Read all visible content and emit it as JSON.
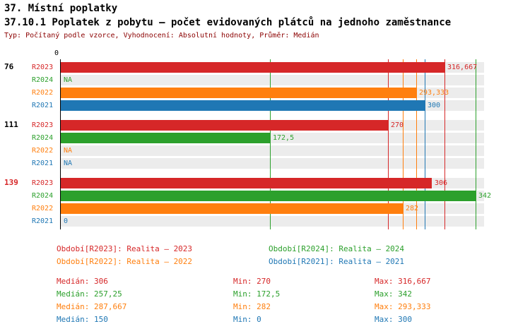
{
  "header": {
    "title1": "37. Místní poplatky",
    "title2": "37.10.1 Poplatek z pobytu – počet evidovaných plátců na jednoho zaměstnance",
    "subtitle": "Typ: Počítaný podle vzorce, Vyhodnocení: Absolutní hodnoty, Průměr: Medián"
  },
  "axis": {
    "zero_label": "0",
    "max": 349
  },
  "colors": {
    "series": {
      "R2023": "#d62728",
      "R2024": "#2ca02c",
      "R2022": "#ff7f0e",
      "R2021": "#1f77b4"
    },
    "subtitle": "#8b0000",
    "group_label_highlight": "#d62728",
    "track": "#ececec",
    "axis": "#000000"
  },
  "chart_data": {
    "type": "bar",
    "orientation": "horizontal",
    "title": "37.10.1 Poplatek z pobytu – počet evidovaných plátců na jednoho zaměstnance",
    "xlim": [
      0,
      349
    ],
    "series_order": [
      "R2023",
      "R2024",
      "R2022",
      "R2021"
    ],
    "groups": [
      {
        "label": "76",
        "highlight": false,
        "bars": [
          {
            "series": "R2023",
            "value": 316.667,
            "display": "316,667"
          },
          {
            "series": "R2024",
            "value": null,
            "display": "NA"
          },
          {
            "series": "R2022",
            "value": 293.333,
            "display": "293,333"
          },
          {
            "series": "R2021",
            "value": 300,
            "display": "300"
          }
        ]
      },
      {
        "label": "111",
        "highlight": false,
        "bars": [
          {
            "series": "R2023",
            "value": 270,
            "display": "270"
          },
          {
            "series": "R2024",
            "value": 172.5,
            "display": "172,5"
          },
          {
            "series": "R2022",
            "value": null,
            "display": "NA"
          },
          {
            "series": "R2021",
            "value": null,
            "display": "NA"
          }
        ]
      },
      {
        "label": "139",
        "highlight": true,
        "bars": [
          {
            "series": "R2023",
            "value": 306,
            "display": "306"
          },
          {
            "series": "R2024",
            "value": 342,
            "display": "342"
          },
          {
            "series": "R2022",
            "value": 282,
            "display": "282"
          },
          {
            "series": "R2021",
            "value": 0,
            "display": "0"
          }
        ]
      }
    ],
    "minmax_lines": [
      {
        "series": "R2023",
        "value": 270
      },
      {
        "series": "R2023",
        "value": 316.667
      },
      {
        "series": "R2024",
        "value": 172.5
      },
      {
        "series": "R2024",
        "value": 342
      },
      {
        "series": "R2022",
        "value": 282
      },
      {
        "series": "R2022",
        "value": 293.333
      },
      {
        "series": "R2021",
        "value": 0
      },
      {
        "series": "R2021",
        "value": 300
      }
    ],
    "stats": [
      {
        "series": "R2023",
        "median": "Medián: 306",
        "min": "Min: 270",
        "max": "Max: 316,667"
      },
      {
        "series": "R2024",
        "median": "Medián: 257,25",
        "min": "Min: 172,5",
        "max": "Max: 342"
      },
      {
        "series": "R2022",
        "median": "Medián: 287,667",
        "min": "Min: 282",
        "max": "Max: 293,333"
      },
      {
        "series": "R2021",
        "median": "Medián: 150",
        "min": "Min: 0",
        "max": "Max: 300"
      }
    ]
  },
  "legend": [
    {
      "series": "R2023",
      "label": "Období[R2023]: Realita – 2023"
    },
    {
      "series": "R2024",
      "label": "Období[R2024]: Realita – 2024"
    },
    {
      "series": "R2022",
      "label": "Období[R2022]: Realita – 2022"
    },
    {
      "series": "R2021",
      "label": "Období[R2021]: Realita – 2021"
    }
  ]
}
